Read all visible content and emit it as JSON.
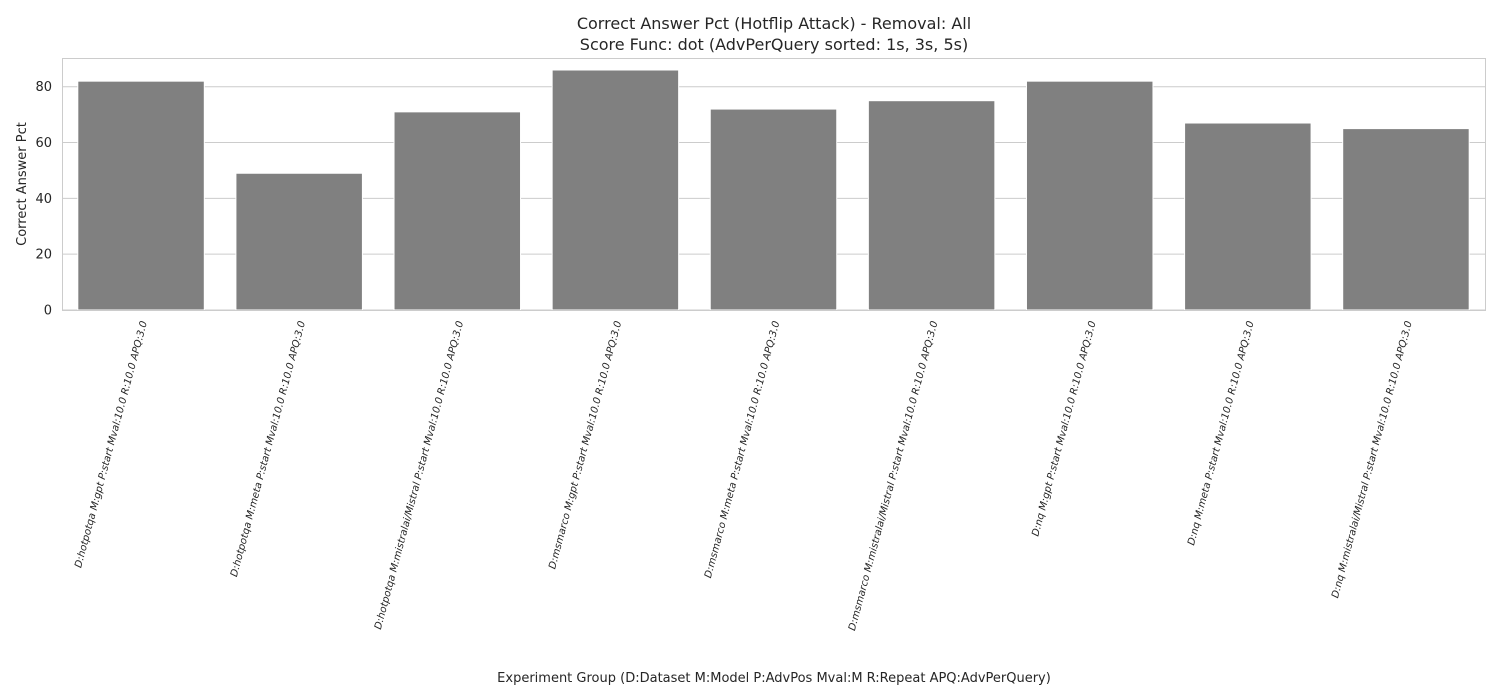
{
  "chart_data": {
    "type": "bar",
    "title_lines": [
      "Correct Answer Pct (Hotflip Attack) - Removal: All",
      "Score Func: dot (AdvPerQuery sorted: 1s, 3s, 5s)"
    ],
    "xlabel": "Experiment Group (D:Dataset M:Model P:AdvPos Mval:M R:Repeat APQ:AdvPerQuery)",
    "ylabel": "Correct Answer Pct",
    "categories": [
      "D:hotpotqa M:gpt P:start Mval:10.0 R:10.0 APQ:3.0",
      "D:hotpotqa M:meta P:start Mval:10.0 R:10.0 APQ:3.0",
      "D:hotpotqa M:mistralai/Mistral P:start Mval:10.0 R:10.0 APQ:3.0",
      "D:msmarco M:gpt P:start Mval:10.0 R:10.0 APQ:3.0",
      "D:msmarco M:meta P:start Mval:10.0 R:10.0 APQ:3.0",
      "D:msmarco M:mistralai/Mistral P:start Mval:10.0 R:10.0 APQ:3.0",
      "D:nq M:gpt P:start Mval:10.0 R:10.0 APQ:3.0",
      "D:nq M:meta P:start Mval:10.0 R:10.0 APQ:3.0",
      "D:nq M:mistralai/Mistral P:start Mval:10.0 R:10.0 APQ:3.0"
    ],
    "values": [
      82,
      49,
      71,
      86,
      72,
      75,
      82,
      67,
      65
    ],
    "yticks": [
      0,
      20,
      40,
      60,
      80
    ],
    "ylim": [
      0,
      90.3
    ],
    "grid": true,
    "bar_color": "#808080"
  }
}
